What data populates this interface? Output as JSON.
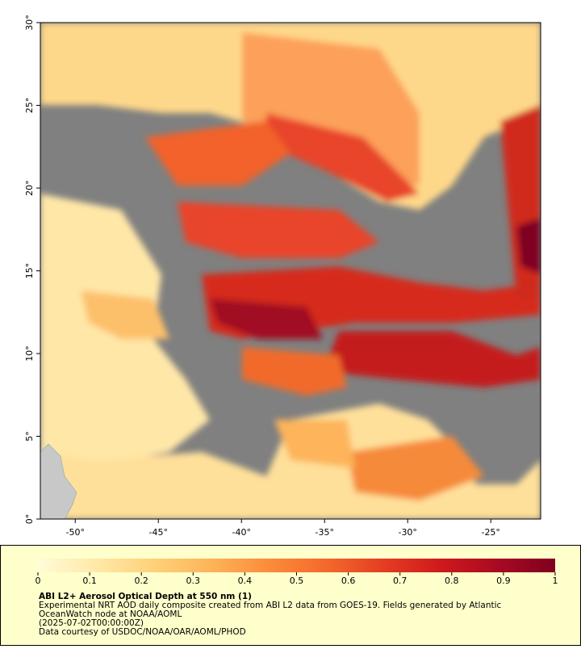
{
  "map": {
    "xlim": [
      -52.1,
      -22
    ],
    "ylim": [
      0,
      30
    ],
    "xticks": [
      {
        "value": -50,
        "label": "-50°"
      },
      {
        "value": -45,
        "label": "-45°"
      },
      {
        "value": -40,
        "label": "-40°"
      },
      {
        "value": -35,
        "label": "-35°"
      },
      {
        "value": -30,
        "label": "-30°"
      },
      {
        "value": -25,
        "label": "-25°"
      }
    ],
    "yticks": [
      {
        "value": 0,
        "label": "0°"
      },
      {
        "value": 5,
        "label": "5°"
      },
      {
        "value": 10,
        "label": "10°"
      },
      {
        "value": 15,
        "label": "15°"
      },
      {
        "value": 20,
        "label": "20°"
      },
      {
        "value": 25,
        "label": "25°"
      },
      {
        "value": 30,
        "label": "30°"
      }
    ]
  },
  "colorbar": {
    "lim": [
      0,
      1
    ],
    "ticks": [
      0,
      0.1,
      0.2,
      0.3,
      0.4,
      0.5,
      0.6,
      0.7,
      0.8,
      0.9,
      1
    ],
    "colors": [
      "#fffbd8",
      "#ffe9a8",
      "#fed27a",
      "#fdb45a",
      "#fc8c3c",
      "#f46a2c",
      "#e43e22",
      "#cf1a1c",
      "#a80a22",
      "#800020"
    ]
  },
  "caption": {
    "title": "ABI L2+ Aerosol Optical Depth at 550 nm (1)",
    "lines": [
      "Experimental NRT AOD daily composite created from ABI L2 data from GOES-19. Fields generated by Atlantic",
      "OceanWatch node at NOAA/AOML",
      "(2025-07-02T00:00:00Z)",
      "Data courtesy of USDOC/NOAA/OAR/AOML/PHOD"
    ]
  }
}
